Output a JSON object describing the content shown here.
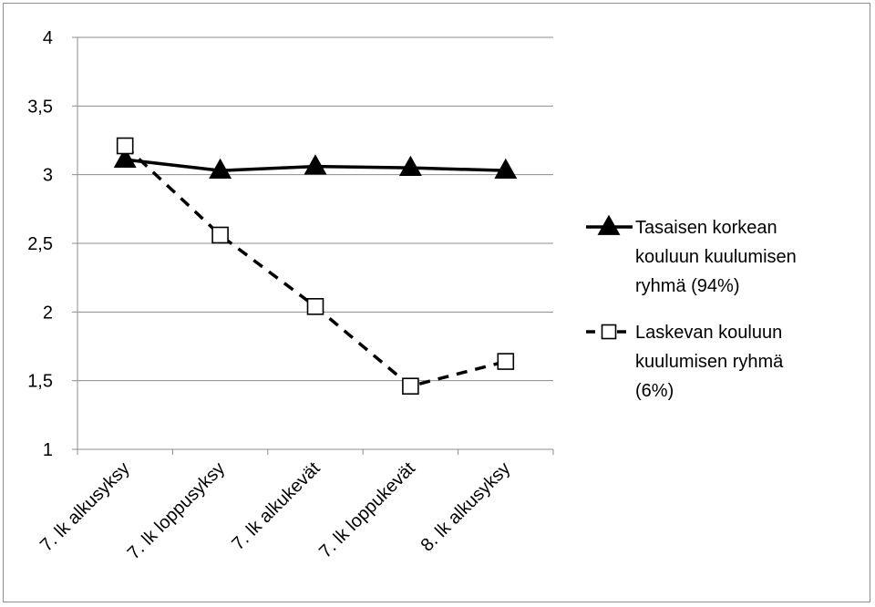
{
  "chart_data": {
    "type": "line",
    "title": "",
    "xlabel": "",
    "ylabel": "",
    "categories": [
      "7. lk alkusyksy",
      "7. lk loppusyksy",
      "7. lk alkukevät",
      "7. lk loppukevät",
      "8. lk alkusyksy"
    ],
    "ylim": [
      1,
      4
    ],
    "yticks": [
      "1",
      "1,5",
      "2",
      "2,5",
      "3",
      "3,5",
      "4"
    ],
    "grid": true,
    "legend_position": "right",
    "series": [
      {
        "name": "Tasaisen korkean kouluun kuulumisen ryhmä (94%)",
        "legend_lines": [
          "Tasaisen korkean",
          "kouluun kuulumisen",
          "ryhmä (94%)"
        ],
        "values": [
          3.11,
          3.03,
          3.06,
          3.05,
          3.03
        ],
        "line_style": "solid",
        "marker": "filled-triangle",
        "color": "#000000"
      },
      {
        "name": "Laskevan kouluun kuulumisen ryhmä (6%)",
        "legend_lines": [
          "Laskevan kouluun",
          "kuulumisen ryhmä",
          "(6%)"
        ],
        "values": [
          3.21,
          2.56,
          2.04,
          1.46,
          1.64
        ],
        "line_style": "dashed",
        "marker": "open-square",
        "color": "#000000"
      }
    ]
  }
}
